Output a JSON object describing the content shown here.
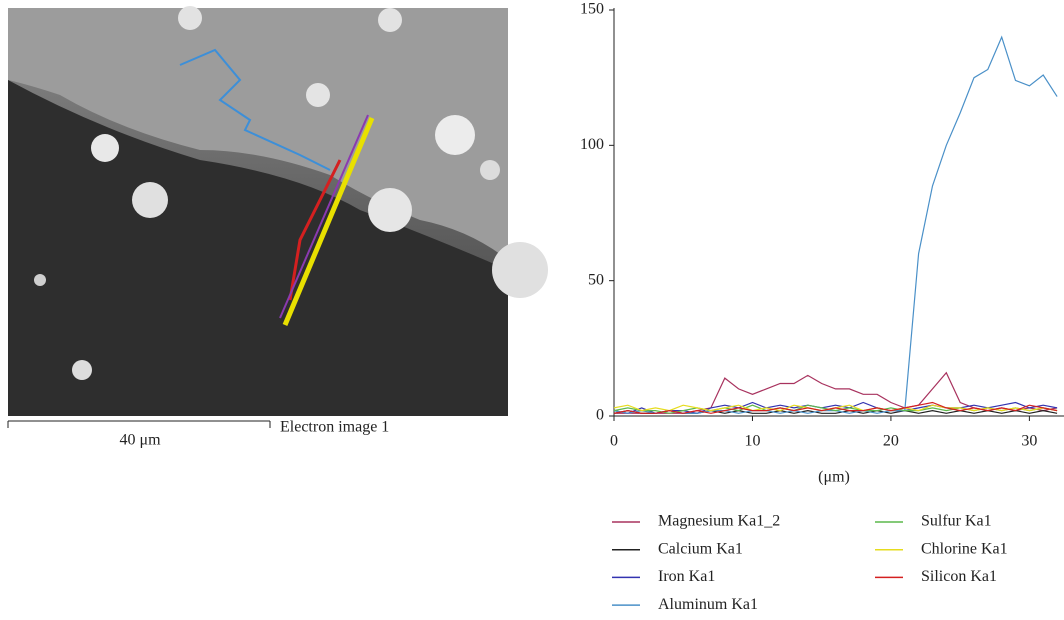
{
  "image": {
    "scale_bar": "40 μm",
    "caption": "Electron image 1"
  },
  "chart_data": {
    "type": "line",
    "x_label": "(μm)",
    "x": [
      0,
      1,
      2,
      3,
      4,
      5,
      6,
      7,
      8,
      9,
      10,
      11,
      12,
      13,
      14,
      15,
      16,
      17,
      18,
      19,
      20,
      21,
      22,
      23,
      24,
      25,
      26,
      27,
      28,
      29,
      30,
      31,
      32
    ],
    "xlim": [
      0,
      32.5
    ],
    "xticks": [
      0,
      10,
      20,
      30
    ],
    "ylim": [
      0,
      150
    ],
    "yticks": [
      0,
      50,
      100,
      150
    ],
    "legend": "bottom",
    "series": [
      {
        "name": "Magnesium Ka1_2",
        "color": "#a8325e",
        "values": [
          1,
          1,
          1,
          1,
          1,
          1,
          2,
          3,
          14,
          10,
          8,
          10,
          12,
          12,
          15,
          12,
          10,
          10,
          8,
          8,
          5,
          3,
          4,
          10,
          16,
          5,
          3,
          2,
          3,
          2,
          3,
          2,
          3
        ]
      },
      {
        "name": "Calcium Ka1",
        "color": "#222222",
        "values": [
          1,
          2,
          1,
          1,
          2,
          1,
          1,
          2,
          1,
          2,
          1,
          1,
          2,
          1,
          2,
          1,
          1,
          2,
          1,
          2,
          1,
          2,
          1,
          2,
          1,
          2,
          1,
          2,
          1,
          2,
          1,
          2,
          1
        ]
      },
      {
        "name": "Iron Ka1",
        "color": "#3333b0",
        "values": [
          2,
          1,
          3,
          1,
          2,
          2,
          1,
          3,
          4,
          3,
          5,
          3,
          4,
          3,
          4,
          3,
          4,
          3,
          5,
          3,
          2,
          2,
          3,
          4,
          3,
          3,
          4,
          3,
          4,
          5,
          3,
          4,
          3
        ]
      },
      {
        "name": "Aluminum Ka1",
        "color": "#4a90c8",
        "values": [
          2,
          1,
          2,
          1,
          2,
          1,
          1,
          2,
          2,
          1,
          2,
          2,
          1,
          2,
          1,
          2,
          2,
          1,
          2,
          1,
          2,
          2,
          60,
          85,
          100,
          112,
          125,
          128,
          140,
          124,
          122,
          126,
          118
        ]
      },
      {
        "name": "Sulfur Ka1",
        "color": "#5cb84c",
        "values": [
          2,
          3,
          2,
          2,
          1,
          2,
          3,
          2,
          3,
          2,
          4,
          2,
          3,
          2,
          4,
          3,
          2,
          3,
          2,
          2,
          3,
          2,
          2,
          3,
          2,
          3,
          2,
          3,
          2,
          3,
          2,
          3,
          2
        ]
      },
      {
        "name": "Chlorine Ka1",
        "color": "#e6dc1e",
        "values": [
          3,
          4,
          2,
          3,
          2,
          4,
          3,
          2,
          3,
          4,
          2,
          3,
          2,
          4,
          3,
          2,
          3,
          4,
          2,
          3,
          2,
          3,
          2,
          4,
          3,
          3,
          2,
          3,
          2,
          3,
          2,
          3,
          2
        ]
      },
      {
        "name": "Silicon Ka1",
        "color": "#d42020",
        "values": [
          1,
          2,
          1,
          1,
          2,
          1,
          2,
          1,
          2,
          3,
          2,
          2,
          3,
          2,
          3,
          2,
          3,
          2,
          2,
          3,
          2,
          3,
          4,
          5,
          3,
          2,
          3,
          2,
          3,
          2,
          4,
          3,
          2
        ]
      }
    ]
  }
}
